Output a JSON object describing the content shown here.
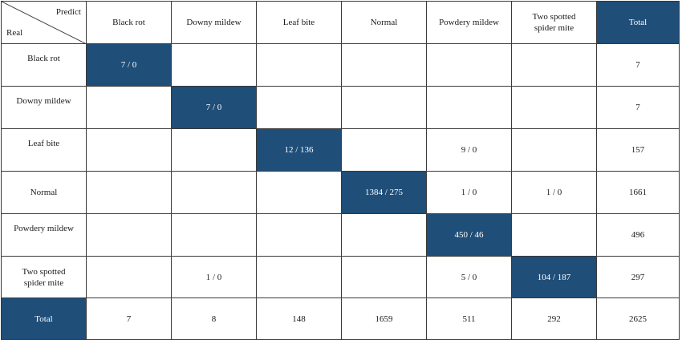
{
  "chart_data": {
    "type": "table",
    "corner": {
      "column_axis": "Predict",
      "row_axis": "Real"
    },
    "columns": [
      "Black rot",
      "Downy mildew",
      "Leaf bite",
      "Normal",
      "Powdery mildew",
      "Two spotted spider mite",
      "Total"
    ],
    "rows": [
      {
        "label": "Black rot",
        "cells": [
          "7 / 0",
          "",
          "",
          "",
          "",
          "",
          "7"
        ]
      },
      {
        "label": "Downy mildew",
        "cells": [
          "",
          "7 / 0",
          "",
          "",
          "",
          "",
          "7"
        ]
      },
      {
        "label": "Leaf bite",
        "cells": [
          "",
          "",
          "12 / 136",
          "",
          "9 / 0",
          "",
          "157"
        ]
      },
      {
        "label": "Normal",
        "cells": [
          "",
          "",
          "",
          "1384 / 275",
          "1 / 0",
          "1 / 0",
          "1661"
        ]
      },
      {
        "label": "Powdery mildew",
        "cells": [
          "",
          "",
          "",
          "",
          "450 / 46",
          "",
          "496"
        ]
      },
      {
        "label": "Two spotted spider mite",
        "cells": [
          "",
          "1 / 0",
          "",
          "",
          "5 / 0",
          "104 / 187",
          "297"
        ]
      },
      {
        "label": "Total",
        "cells": [
          "7",
          "8",
          "148",
          "1659",
          "511",
          "292",
          "2625"
        ]
      }
    ],
    "highlight_color": "#1f4e79"
  }
}
